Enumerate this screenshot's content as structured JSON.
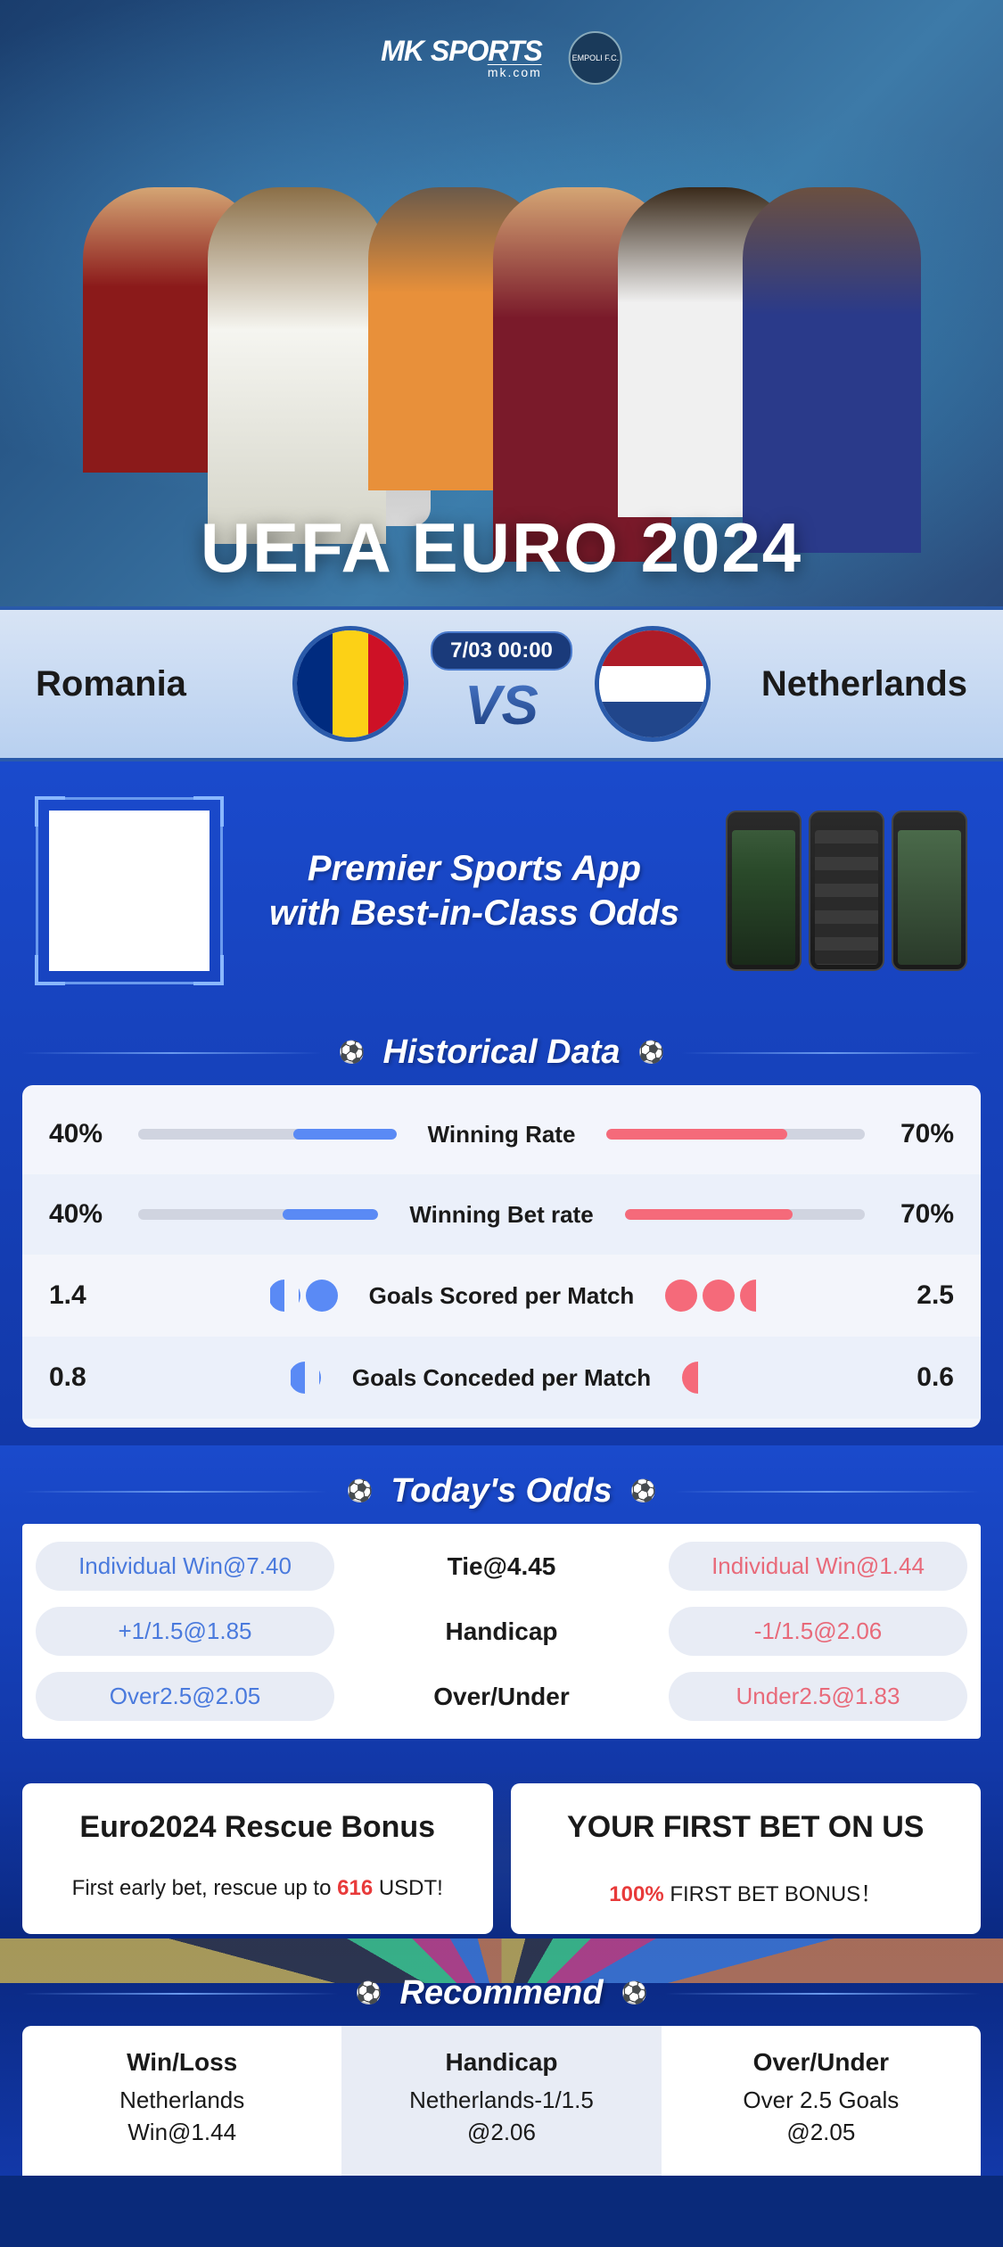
{
  "brand": {
    "name": "MK SPORTS",
    "domain": "mk.com",
    "club": "EMPOLI F.C."
  },
  "hero_title": "UEFA EURO 2024",
  "match": {
    "home": "Romania",
    "away": "Netherlands",
    "datetime": "7/03 00:00",
    "vs": "VS",
    "home_flag_colors": [
      "#002b7f",
      "#fcd116",
      "#ce1126"
    ],
    "away_flag_colors": [
      "#ae1c28",
      "#ffffff",
      "#21468b"
    ]
  },
  "promo": {
    "line1": "Premier Sports App",
    "line2": "with Best-in-Class Odds"
  },
  "sections": {
    "historical": "Historical Data",
    "odds": "Today's Odds",
    "recommend": "Recommend"
  },
  "historical": {
    "rows": [
      {
        "label": "Winning Rate",
        "home_val": "40%",
        "away_val": "70%",
        "home_pct": 40,
        "away_pct": 70,
        "type": "bar"
      },
      {
        "label": "Winning Bet rate",
        "home_val": "40%",
        "away_val": "70%",
        "home_pct": 40,
        "away_pct": 70,
        "type": "bar"
      },
      {
        "label": "Goals Scored per Match",
        "home_val": "1.4",
        "away_val": "2.5",
        "home_balls": 1.4,
        "away_balls": 2.5,
        "type": "balls"
      },
      {
        "label": "Goals Conceded per Match",
        "home_val": "0.8",
        "away_val": "0.6",
        "home_balls": 0.8,
        "away_balls": 0.6,
        "type": "balls"
      }
    ],
    "colors": {
      "home": "#5a8af5",
      "away": "#f56a7a",
      "track": "#d0d4e0"
    }
  },
  "odds": {
    "rows": [
      {
        "home": "Individual Win@7.40",
        "center": "Tie@4.45",
        "away": "Individual Win@1.44"
      },
      {
        "home": "+1/1.5@1.85",
        "center": "Handicap",
        "away": "-1/1.5@2.06"
      },
      {
        "home": "Over2.5@2.05",
        "center": "Over/Under",
        "away": "Under2.5@1.83"
      }
    ]
  },
  "bonuses": [
    {
      "title": "Euro2024 Rescue Bonus",
      "sub_pre": "First early bet, rescue up to ",
      "sub_hl": "616",
      "sub_post": " USDT!"
    },
    {
      "title": "YOUR FIRST BET ON US",
      "sub_pre": "",
      "sub_hl": "100%",
      "sub_post": " FIRST BET BONUS！"
    }
  ],
  "recommend": [
    {
      "head": "Win/Loss",
      "line1": "Netherlands",
      "line2": "Win@1.44"
    },
    {
      "head": "Handicap",
      "line1": "Netherlands-1/1.5",
      "line2": "@2.06"
    },
    {
      "head": "Over/Under",
      "line1": "Over 2.5 Goals",
      "line2": "@2.05"
    }
  ],
  "colors": {
    "primary_blue": "#1a4acc",
    "deep_blue": "#1238a8",
    "accent_blue": "#5a8af5",
    "accent_red": "#f56a7a",
    "text_blue": "#4a7add",
    "text_red": "#e86a7a",
    "highlight_red": "#e83a3a",
    "bg_white": "#ffffff",
    "pill_bg": "#e8ecf5"
  }
}
